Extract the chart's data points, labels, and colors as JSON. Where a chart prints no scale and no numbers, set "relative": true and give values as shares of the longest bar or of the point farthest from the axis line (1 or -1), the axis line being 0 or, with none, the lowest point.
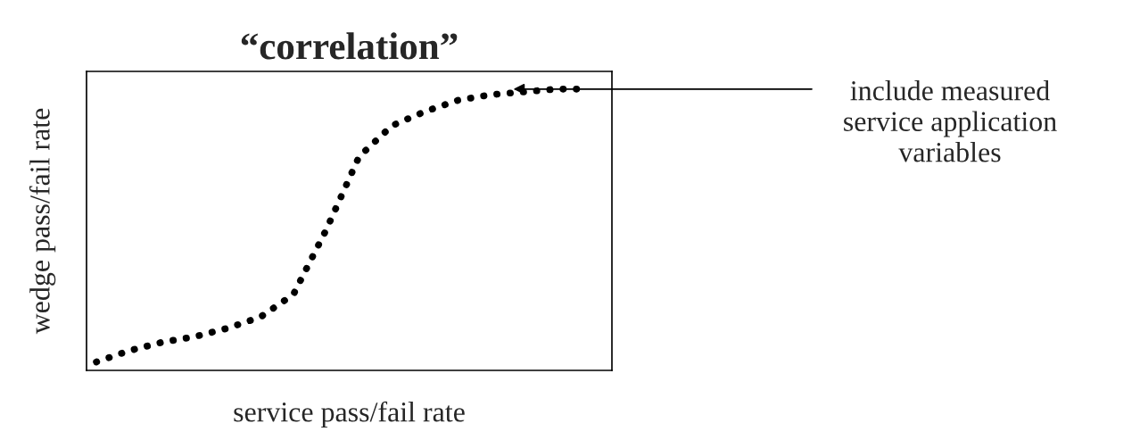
{
  "chart_data": {
    "type": "line",
    "title": "“correlation”",
    "xlabel": "service pass/fail rate",
    "ylabel": "wedge pass/fail rate",
    "relative": true,
    "line_style": "dotted",
    "marker": "none",
    "tick_labels": false,
    "categories": [
      null,
      null,
      null,
      null,
      null,
      null,
      null,
      null,
      null,
      null,
      null,
      null,
      null,
      null,
      null,
      null
    ],
    "series": [
      {
        "color": "#000000",
        "values": [
          0.03,
          0.07,
          0.1,
          0.12,
          0.15,
          0.19,
          0.27,
          0.5,
          0.76,
          0.87,
          0.92,
          0.96,
          0.98,
          0.99,
          1.0,
          1.0
        ]
      }
    ],
    "annotations": [
      "include measured\nservice application\nvariables"
    ]
  }
}
